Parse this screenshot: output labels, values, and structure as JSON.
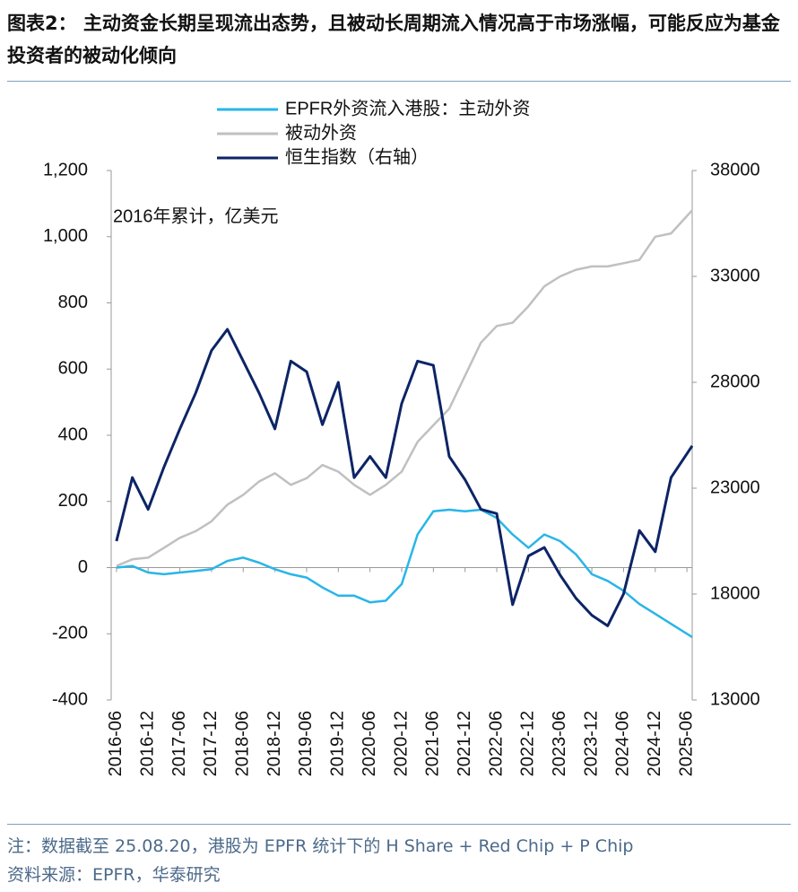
{
  "chart_data": {
    "type": "line",
    "title": "图表2：  主动资金长期呈现流出态势，且被动长周期流入情况高于市场涨幅，可能反应为基金投资者的被动化倾向",
    "annotation": "2016年累计，亿美元",
    "note": "注：数据截至 25.08.20，港股为 EPFR 统计下的 H Share + Red Chip + P Chip",
    "source": "资料来源：EPFR，华泰研究",
    "legend": "top",
    "x": [
      "2016-06",
      "2016-09",
      "2016-12",
      "2017-03",
      "2017-06",
      "2017-09",
      "2017-12",
      "2018-03",
      "2018-06",
      "2018-09",
      "2018-12",
      "2019-03",
      "2019-06",
      "2019-09",
      "2019-12",
      "2020-03",
      "2020-06",
      "2020-09",
      "2020-12",
      "2021-03",
      "2021-06",
      "2021-09",
      "2021-12",
      "2022-03",
      "2022-06",
      "2022-09",
      "2022-12",
      "2023-03",
      "2023-06",
      "2023-09",
      "2023-12",
      "2024-03",
      "2024-06",
      "2024-09",
      "2024-12",
      "2025-03",
      "2025-07"
    ],
    "series": [
      {
        "name": "EPFR外资流入港股：主动外资",
        "color": "#29b5e8",
        "values": [
          0,
          5,
          -15,
          -20,
          -15,
          -10,
          -5,
          20,
          30,
          15,
          -5,
          -20,
          -30,
          -60,
          -85,
          -85,
          -105,
          -100,
          -50,
          100,
          170,
          175,
          170,
          175,
          150,
          100,
          60,
          100,
          80,
          40,
          -20,
          -40,
          -70,
          -110,
          -140,
          -170,
          -210
        ]
      },
      {
        "name": "被动外资",
        "color": "#c0c0c0",
        "values": [
          5,
          25,
          30,
          60,
          90,
          110,
          140,
          190,
          220,
          260,
          285,
          250,
          270,
          310,
          290,
          250,
          220,
          250,
          290,
          380,
          430,
          480,
          580,
          680,
          730,
          740,
          790,
          850,
          880,
          900,
          910,
          910,
          920,
          930,
          1000,
          1010,
          1080
        ]
      },
      {
        "name": "恒生指数（右轴）",
        "color": "#0d2466",
        "axis": "y2",
        "values": [
          20500,
          23500,
          22000,
          24000,
          25800,
          27500,
          29500,
          30500,
          29000,
          27500,
          25800,
          29000,
          28500,
          26000,
          28000,
          23500,
          24500,
          23500,
          27000,
          29000,
          28800,
          24500,
          23400,
          22000,
          21800,
          17500,
          19800,
          20200,
          18900,
          17800,
          17000,
          16500,
          18000,
          21000,
          20000,
          23500,
          25000
        ]
      }
    ],
    "xlim": [
      "2016-05",
      "2025-07"
    ],
    "xticks": [
      "2016-06",
      "2016-12",
      "2017-06",
      "2017-12",
      "2018-06",
      "2018-12",
      "2019-06",
      "2019-12",
      "2020-06",
      "2020-12",
      "2021-06",
      "2021-12",
      "2022-06",
      "2022-12",
      "2023-06",
      "2023-12",
      "2024-06",
      "2024-12",
      "2025-06"
    ],
    "ylim": [
      -400,
      1200
    ],
    "yticks": [
      -400,
      -200,
      0,
      200,
      400,
      600,
      800,
      {
        "value": 1000,
        "label": "1,000"
      },
      {
        "value": 1200,
        "label": "1,200"
      }
    ],
    "y2lim": [
      13000,
      38000
    ],
    "y2ticks": [
      13000,
      18000,
      23000,
      28000,
      33000,
      38000
    ]
  }
}
